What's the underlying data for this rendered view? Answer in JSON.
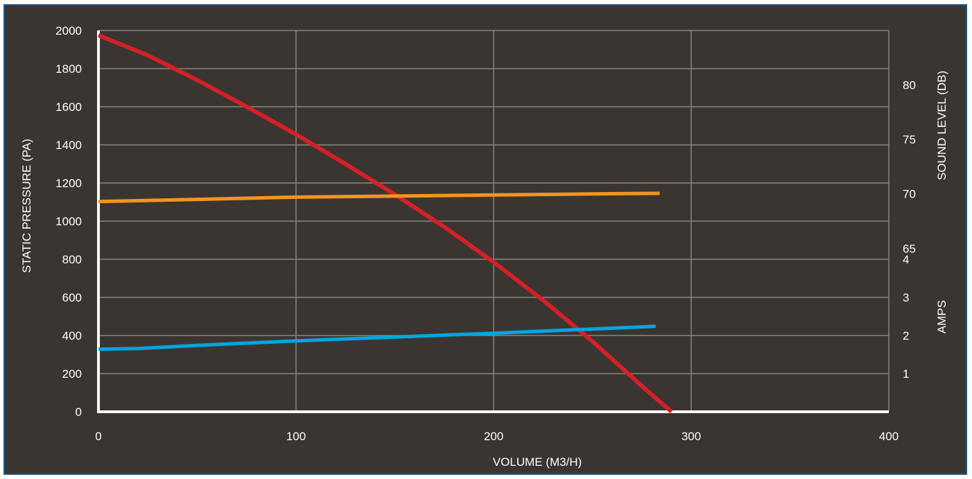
{
  "chart_data": {
    "type": "line",
    "title": "",
    "xlabel": "VOLUME (M3/H)",
    "ylabel": "STATIC PRESSURE (PA)",
    "y2label_top": "SOUND LEVEL (DB)",
    "y2label_bottom": "AMPS",
    "xlim": [
      0,
      400
    ],
    "ylim": [
      0,
      2000
    ],
    "x_ticks": [
      "0",
      "100",
      "200",
      "300",
      "400"
    ],
    "y_ticks": [
      "0",
      "200",
      "400",
      "600",
      "800",
      "1000",
      "1200",
      "1400",
      "1600",
      "1800",
      "2000"
    ],
    "sound_axis": {
      "ticks": [
        "65",
        "70",
        "75",
        "80"
      ],
      "values": [
        65,
        70,
        75,
        80
      ],
      "range": [
        50,
        85
      ]
    },
    "amps_axis": {
      "ticks": [
        "1",
        "2",
        "3",
        "4"
      ],
      "values": [
        1,
        2,
        3,
        4
      ],
      "range": [
        0,
        5
      ]
    },
    "grid": true,
    "series": [
      {
        "axis": "pressure",
        "color": "#d42027",
        "x": [
          0,
          25,
          50,
          75,
          100,
          125,
          150,
          175,
          200,
          225,
          250,
          275,
          290
        ],
        "y": [
          1975,
          1870,
          1740,
          1600,
          1455,
          1300,
          1140,
          970,
          785,
          585,
          370,
          135,
          0
        ]
      },
      {
        "axis": "sound",
        "color": "#f7941d",
        "x": [
          0,
          50,
          100,
          150,
          200,
          250,
          284
        ],
        "y": [
          69.3,
          69.5,
          69.7,
          69.8,
          69.9,
          70.0,
          70.05
        ]
      },
      {
        "axis": "amps",
        "color": "#00a6e0",
        "x": [
          0,
          20,
          50,
          100,
          150,
          200,
          250,
          282
        ],
        "y": [
          1.64,
          1.66,
          1.74,
          1.86,
          1.96,
          2.06,
          2.17,
          2.24
        ]
      }
    ]
  }
}
